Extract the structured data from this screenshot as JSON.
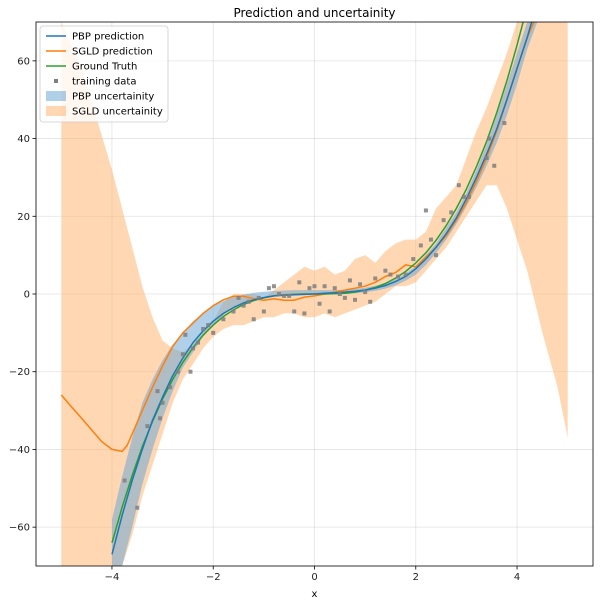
{
  "chart_data": {
    "type": "line",
    "title": "Prediction and uncertainity",
    "xlabel": "x",
    "ylabel": "",
    "xlim": [
      -5.5,
      5.5
    ],
    "ylim": [
      -70,
      70
    ],
    "grid": true,
    "legend_position": "top-left",
    "x_ticks": [
      -4,
      -2,
      0,
      2,
      4
    ],
    "y_ticks": [
      -60,
      -40,
      -20,
      0,
      20,
      40,
      60
    ],
    "x_tick_labels": [
      "−4",
      "−2",
      "0",
      "2",
      "4"
    ],
    "y_tick_labels": [
      "−60",
      "−40",
      "−20",
      "0",
      "20",
      "40",
      "60"
    ],
    "colors": {
      "pbp": "#1f77b4",
      "sgld": "#ff7f0e",
      "truth": "#2ca02c",
      "training": "#7f7f7f",
      "pbp_band": "#6fa7d6",
      "sgld_band": "#ffb672"
    },
    "legend": [
      {
        "label": "PBP prediction",
        "kind": "line",
        "color": "#1f77b4"
      },
      {
        "label": "SGLD prediction",
        "kind": "line",
        "color": "#ff7f0e"
      },
      {
        "label": "Ground Truth",
        "kind": "line",
        "color": "#2ca02c"
      },
      {
        "label": "training data",
        "kind": "marker",
        "color": "#7f7f7f"
      },
      {
        "label": "PBP uncertainity",
        "kind": "patch",
        "color": "#6fa7d6"
      },
      {
        "label": "SGLD uncertainity",
        "kind": "patch",
        "color": "#ffb672"
      }
    ],
    "series": [
      {
        "name": "SGLD uncertainity",
        "kind": "band",
        "x": [
          -5.0,
          -4.6,
          -4.3,
          -4.0,
          -3.8,
          -3.6,
          -3.4,
          -3.2,
          -3.0,
          -2.8,
          -2.6,
          -2.4,
          -2.2,
          -2.0,
          -1.8,
          -1.6,
          -1.4,
          -1.2,
          -1.0,
          -0.8,
          -0.6,
          -0.4,
          -0.2,
          0.0,
          0.2,
          0.4,
          0.6,
          0.8,
          1.0,
          1.2,
          1.4,
          1.6,
          1.8,
          2.0,
          2.2,
          2.4,
          2.6,
          2.8,
          3.0,
          3.2,
          3.4,
          3.6,
          3.8,
          4.0,
          4.2,
          4.5,
          4.8,
          5.0
        ],
        "upper": [
          70,
          58,
          45,
          32,
          22,
          12,
          2,
          -6,
          -12,
          -14,
          -15,
          -13,
          -10,
          -7,
          -2,
          0,
          0,
          0,
          -1,
          1,
          3,
          5,
          7,
          6,
          7,
          5,
          6,
          9,
          10,
          8,
          11,
          13,
          14,
          14,
          16,
          22,
          25,
          28,
          35,
          42,
          48,
          55,
          62,
          70,
          70,
          70,
          70,
          70
        ],
        "lower": [
          -70,
          -70,
          -70,
          -70,
          -70,
          -62,
          -52,
          -44,
          -36,
          -28,
          -22,
          -18,
          -14,
          -11,
          -9,
          -8,
          -8,
          -7,
          -6,
          -6,
          -5,
          -5,
          -6,
          -6,
          -5,
          -6,
          -5,
          -4,
          -3,
          -2,
          0,
          2,
          2,
          3,
          6,
          9,
          12,
          16,
          20,
          24,
          28,
          28,
          22,
          14,
          6,
          -10,
          -24,
          -37
        ]
      },
      {
        "name": "PBP uncertainity",
        "kind": "band",
        "x": [
          -4.0,
          -3.8,
          -3.6,
          -3.4,
          -3.2,
          -3.0,
          -2.8,
          -2.6,
          -2.4,
          -2.2,
          -2.0,
          -1.8,
          -1.6,
          -1.4,
          -1.2,
          -1.0,
          -0.8,
          -0.6,
          -0.4,
          -0.2,
          0.0,
          0.2,
          0.4,
          0.6,
          0.8,
          1.0,
          1.2,
          1.4,
          1.6,
          1.8,
          2.0,
          2.2,
          2.4,
          2.6,
          2.8,
          3.0,
          3.2,
          3.4,
          3.6,
          3.8,
          4.0,
          4.2,
          4.4
        ],
        "upper": [
          -58,
          -47,
          -37,
          -28,
          -22,
          -17,
          -13,
          -10,
          -7,
          -5,
          -3,
          -1.8,
          -0.8,
          -0.2,
          0.3,
          0.6,
          0.8,
          0.9,
          1.0,
          1.0,
          1.0,
          1.0,
          1.0,
          1.1,
          1.3,
          1.6,
          2.1,
          2.8,
          3.8,
          5.2,
          7.2,
          10,
          13,
          17,
          21,
          26,
          32,
          38.5,
          46,
          54,
          62,
          70,
          70
        ],
        "lower": [
          -70,
          -70,
          -60,
          -49,
          -40,
          -32,
          -25,
          -19,
          -15,
          -11,
          -8,
          -5.4,
          -3.5,
          -2.2,
          -1.3,
          -0.7,
          -0.4,
          -0.2,
          -0.1,
          -0.1,
          -0.1,
          -0.1,
          -0.1,
          0.0,
          0.2,
          0.4,
          0.8,
          1.4,
          2.2,
          3.4,
          5.0,
          7.5,
          10.5,
          14,
          18,
          22.5,
          27.5,
          33,
          39,
          46,
          54,
          63,
          70
        ]
      },
      {
        "name": "SGLD prediction",
        "kind": "line",
        "x": [
          -5.0,
          -4.8,
          -4.6,
          -4.4,
          -4.2,
          -4.0,
          -3.8,
          -3.7,
          -3.6,
          -3.4,
          -3.2,
          -3.0,
          -2.8,
          -2.6,
          -2.4,
          -2.2,
          -2.0,
          -1.8,
          -1.6,
          -1.4,
          -1.2,
          -1.0,
          -0.8,
          -0.6,
          -0.4,
          -0.2,
          0.0,
          0.2,
          0.4,
          0.6,
          0.8,
          1.0,
          1.2,
          1.4,
          1.6,
          1.8,
          2.0,
          2.2,
          2.4,
          2.6,
          2.8,
          3.0,
          3.2,
          3.4,
          3.6,
          3.8,
          4.0,
          4.2,
          4.4
        ],
        "y": [
          -26,
          -29,
          -32,
          -35,
          -38,
          -40,
          -40.5,
          -39,
          -36,
          -30,
          -24,
          -18.5,
          -13.5,
          -10,
          -7.5,
          -5,
          -3,
          -1.5,
          -0.6,
          -0.6,
          -1.2,
          -1.6,
          -1.2,
          -1.6,
          -1.6,
          -0.8,
          -0.5,
          0,
          0.5,
          1,
          1.5,
          2,
          3,
          4.5,
          5.5,
          7.5,
          7,
          9.5,
          12,
          15,
          19,
          23.5,
          29,
          35,
          42,
          50,
          58,
          66,
          72
        ]
      },
      {
        "name": "Ground Truth",
        "kind": "line",
        "x": [
          -4.0,
          -3.8,
          -3.6,
          -3.4,
          -3.2,
          -3.0,
          -2.8,
          -2.6,
          -2.4,
          -2.2,
          -2.0,
          -1.8,
          -1.6,
          -1.4,
          -1.2,
          -1.0,
          -0.8,
          -0.6,
          -0.4,
          -0.2,
          0.0,
          0.2,
          0.4,
          0.6,
          0.8,
          1.0,
          1.2,
          1.4,
          1.6,
          1.8,
          2.0,
          2.2,
          2.4,
          2.6,
          2.8,
          3.0,
          3.2,
          3.4,
          3.6,
          3.8,
          4.0,
          4.2,
          4.4
        ],
        "y": [
          -64,
          -54.9,
          -46.7,
          -39.3,
          -32.8,
          -27,
          -22,
          -17.6,
          -13.8,
          -10.6,
          -8,
          -5.8,
          -4.1,
          -2.7,
          -1.7,
          -1,
          -0.5,
          -0.2,
          -0.1,
          0,
          0,
          0,
          0.1,
          0.2,
          0.5,
          1,
          1.7,
          2.7,
          4.1,
          5.8,
          8,
          10.6,
          13.8,
          17.6,
          22,
          27,
          32.8,
          39.3,
          46.7,
          54.9,
          64,
          74,
          85
        ]
      },
      {
        "name": "PBP prediction",
        "kind": "line",
        "x": [
          -4.0,
          -3.8,
          -3.6,
          -3.4,
          -3.2,
          -3.0,
          -2.8,
          -2.6,
          -2.4,
          -2.2,
          -2.0,
          -1.8,
          -1.6,
          -1.4,
          -1.2,
          -1.0,
          -0.8,
          -0.6,
          -0.4,
          -0.2,
          0.0,
          0.2,
          0.4,
          0.6,
          0.8,
          1.0,
          1.2,
          1.4,
          1.6,
          1.8,
          2.0,
          2.2,
          2.4,
          2.6,
          2.8,
          3.0,
          3.2,
          3.4,
          3.6,
          3.8,
          4.0,
          4.2,
          4.4
        ],
        "y": [
          -67,
          -57,
          -48,
          -40,
          -32.5,
          -26.5,
          -21,
          -16.5,
          -12.5,
          -9.5,
          -7,
          -5,
          -3.5,
          -2.3,
          -1.5,
          -0.9,
          -0.5,
          -0.3,
          -0.2,
          -0.1,
          0,
          0.2,
          0.3,
          0.5,
          0.7,
          1,
          1.5,
          2.2,
          3.2,
          4.5,
          6.5,
          9,
          12,
          15.5,
          19.5,
          24.5,
          30,
          36,
          42.5,
          50,
          58,
          66,
          75
        ]
      },
      {
        "name": "training data",
        "kind": "scatter",
        "x": [
          -3.75,
          -3.5,
          -3.3,
          -3.1,
          -3.05,
          -3.0,
          -2.85,
          -2.7,
          -2.6,
          -2.55,
          -2.45,
          -2.4,
          -2.3,
          -2.2,
          -2.1,
          -2.0,
          -1.8,
          -1.6,
          -1.5,
          -1.4,
          -1.3,
          -1.2,
          -1.1,
          -1.0,
          -0.9,
          -0.8,
          -0.7,
          -0.6,
          -0.5,
          -0.4,
          -0.3,
          -0.2,
          -0.1,
          0.0,
          0.1,
          0.2,
          0.3,
          0.4,
          0.5,
          0.6,
          0.7,
          0.8,
          0.9,
          1.0,
          1.1,
          1.2,
          1.4,
          1.5,
          1.65,
          1.8,
          1.95,
          2.1,
          2.2,
          2.3,
          2.4,
          2.55,
          2.7,
          2.85,
          2.95,
          3.05,
          3.4,
          3.45,
          3.55,
          3.75
        ],
        "y": [
          -48,
          -55,
          -34,
          -25,
          -32,
          -28,
          -24,
          -20,
          -15.5,
          -10.5,
          -20,
          -14,
          -12.5,
          -9,
          -8,
          -10,
          -6.5,
          -4.5,
          -1,
          -3,
          -2,
          -6.5,
          -1,
          -4.5,
          1.5,
          2,
          0,
          -0.5,
          -0.5,
          -4.5,
          3,
          -5,
          1.5,
          2,
          -2.5,
          2,
          -4.5,
          1.5,
          0,
          -1,
          3.5,
          -1.5,
          2.5,
          0.5,
          -2,
          4,
          6,
          5,
          4.5,
          5,
          9,
          12.5,
          21.5,
          14,
          10,
          19,
          21,
          28,
          25,
          25,
          35,
          40,
          33,
          44
        ]
      }
    ]
  }
}
